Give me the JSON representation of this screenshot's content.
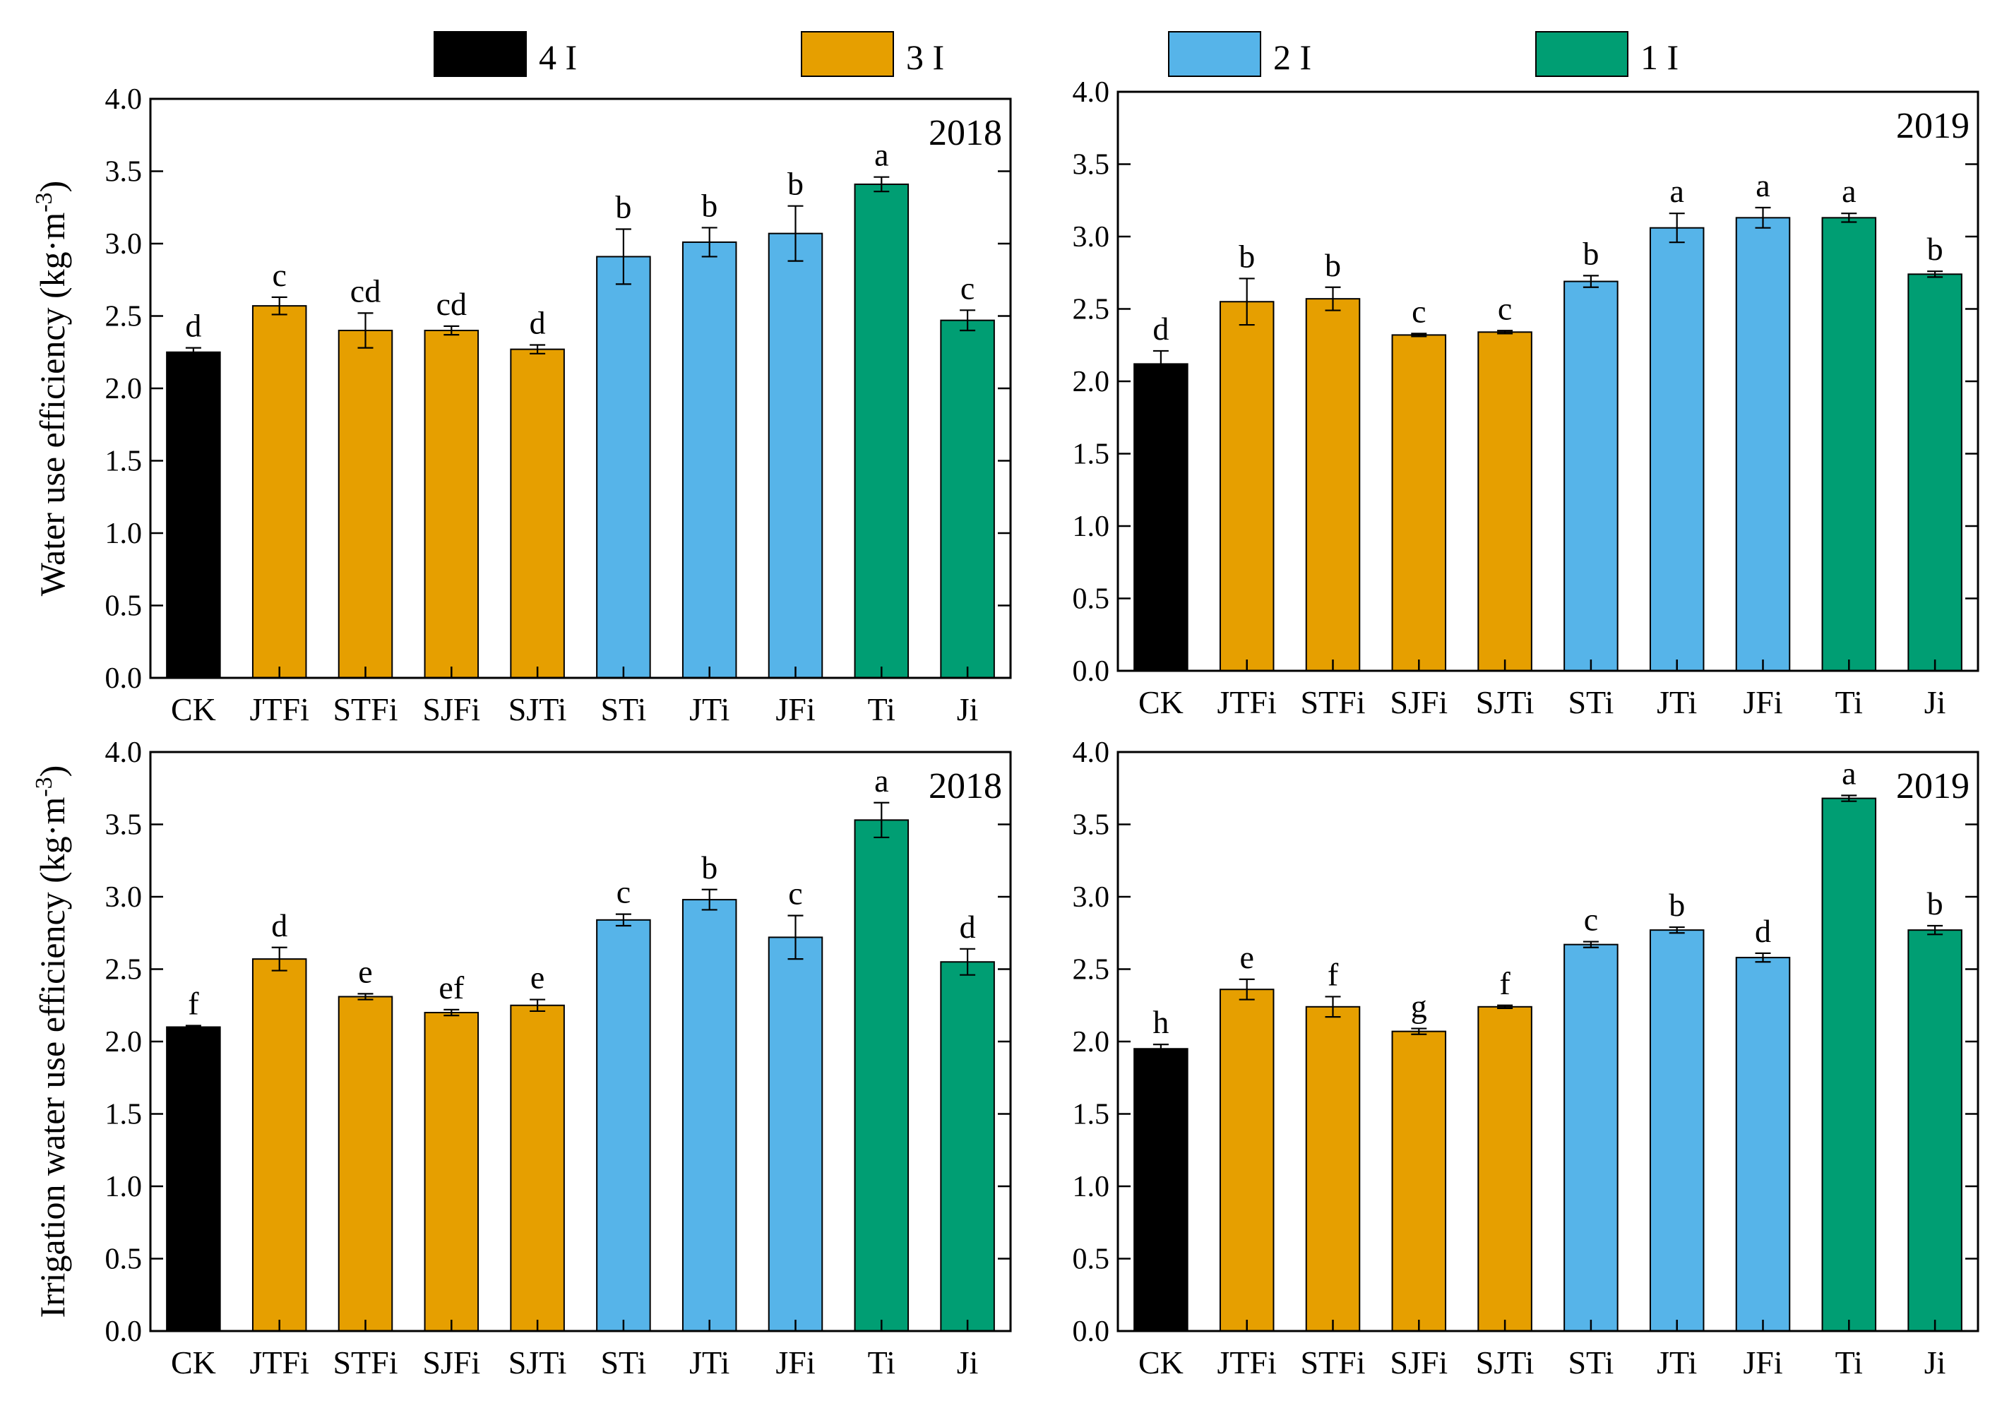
{
  "colors": {
    "4 I": "#000000",
    "3 I": "#E69F00",
    "2 I": "#56B4E9",
    "1 I": "#009E73"
  },
  "legend": [
    {
      "label": "4 I",
      "color": "#000000"
    },
    {
      "label": "3 I",
      "color": "#E69F00"
    },
    {
      "label": "2 I",
      "color": "#56B4E9"
    },
    {
      "label": "1 I",
      "color": "#009E73"
    }
  ],
  "chart_data": [
    {
      "type": "bar",
      "year": "2018",
      "ylabel": "Water use efficiency (kg·m-3)",
      "ylabel_main": "Water use efficiency (kg·m",
      "ylabel_sup": "-3",
      "ylabel_end": ")",
      "ylim": [
        0,
        4.0
      ],
      "yticks": [
        "0.0",
        "0.5",
        "1.0",
        "1.5",
        "2.0",
        "2.5",
        "3.0",
        "3.5",
        "4.0"
      ],
      "categories": [
        "CK",
        "JTFi",
        "STFi",
        "SJFi",
        "SJTi",
        "STi",
        "JTi",
        "JFi",
        "Ti",
        "Ji"
      ],
      "groups": [
        "4 I",
        "3 I",
        "3 I",
        "3 I",
        "3 I",
        "2 I",
        "2 I",
        "2 I",
        "1 I",
        "1 I"
      ],
      "values": [
        2.25,
        2.57,
        2.4,
        2.4,
        2.27,
        2.91,
        3.01,
        3.07,
        3.41,
        2.47
      ],
      "errors": [
        0.03,
        0.06,
        0.12,
        0.03,
        0.03,
        0.19,
        0.1,
        0.19,
        0.05,
        0.07
      ],
      "letters": [
        "d",
        "c",
        "cd",
        "cd",
        "d",
        "b",
        "b",
        "b",
        "a",
        "c"
      ]
    },
    {
      "type": "bar",
      "year": "2019",
      "ylim": [
        0,
        4.0
      ],
      "yticks": [
        "0.0",
        "0.5",
        "1.0",
        "1.5",
        "2.0",
        "2.5",
        "3.0",
        "3.5",
        "4.0"
      ],
      "categories": [
        "CK",
        "JTFi",
        "STFi",
        "SJFi",
        "SJTi",
        "STi",
        "JTi",
        "JFi",
        "Ti",
        "Ji"
      ],
      "groups": [
        "4 I",
        "3 I",
        "3 I",
        "3 I",
        "3 I",
        "2 I",
        "2 I",
        "2 I",
        "1 I",
        "1 I"
      ],
      "values": [
        2.12,
        2.55,
        2.57,
        2.32,
        2.34,
        2.69,
        3.06,
        3.13,
        3.13,
        2.74
      ],
      "errors": [
        0.09,
        0.16,
        0.08,
        0.01,
        0.01,
        0.04,
        0.1,
        0.07,
        0.03,
        0.02
      ],
      "letters": [
        "d",
        "b",
        "b",
        "c",
        "c",
        "b",
        "a",
        "a",
        "a",
        "b"
      ]
    },
    {
      "type": "bar",
      "year": "2018",
      "ylabel": "Irrigation water use efficiency (kg·m-3)",
      "ylabel_main": "Irrigation water use efficiency (kg·m",
      "ylabel_sup": "-3",
      "ylabel_end": ")",
      "ylim": [
        0,
        4.0
      ],
      "yticks": [
        "0.0",
        "0.5",
        "1.0",
        "1.5",
        "2.0",
        "2.5",
        "3.0",
        "3.5",
        "4.0"
      ],
      "categories": [
        "CK",
        "JTFi",
        "STFi",
        "SJFi",
        "SJTi",
        "STi",
        "JTi",
        "JFi",
        "Ti",
        "Ji"
      ],
      "groups": [
        "4 I",
        "3 I",
        "3 I",
        "3 I",
        "3 I",
        "2 I",
        "2 I",
        "2 I",
        "1 I",
        "1 I"
      ],
      "values": [
        2.1,
        2.57,
        2.31,
        2.2,
        2.25,
        2.84,
        2.98,
        2.72,
        3.53,
        2.55
      ],
      "errors": [
        0.01,
        0.08,
        0.02,
        0.02,
        0.04,
        0.04,
        0.07,
        0.15,
        0.12,
        0.09
      ],
      "letters": [
        "f",
        "d",
        "e",
        "ef",
        "e",
        "c",
        "b",
        "c",
        "a",
        "d"
      ]
    },
    {
      "type": "bar",
      "year": "2019",
      "ylim": [
        0,
        4.0
      ],
      "yticks": [
        "0.0",
        "0.5",
        "1.0",
        "1.5",
        "2.0",
        "2.5",
        "3.0",
        "3.5",
        "4.0"
      ],
      "categories": [
        "CK",
        "JTFi",
        "STFi",
        "SJFi",
        "SJTi",
        "STi",
        "JTi",
        "JFi",
        "Ti",
        "Ji"
      ],
      "groups": [
        "4 I",
        "3 I",
        "3 I",
        "3 I",
        "3 I",
        "2 I",
        "2 I",
        "2 I",
        "1 I",
        "1 I"
      ],
      "values": [
        1.95,
        2.36,
        2.24,
        2.07,
        2.24,
        2.67,
        2.77,
        2.58,
        3.68,
        2.77
      ],
      "errors": [
        0.03,
        0.07,
        0.07,
        0.02,
        0.01,
        0.02,
        0.02,
        0.03,
        0.02,
        0.03
      ],
      "letters": [
        "h",
        "e",
        "f",
        "g",
        "f",
        "c",
        "b",
        "d",
        "a",
        "b"
      ]
    }
  ]
}
